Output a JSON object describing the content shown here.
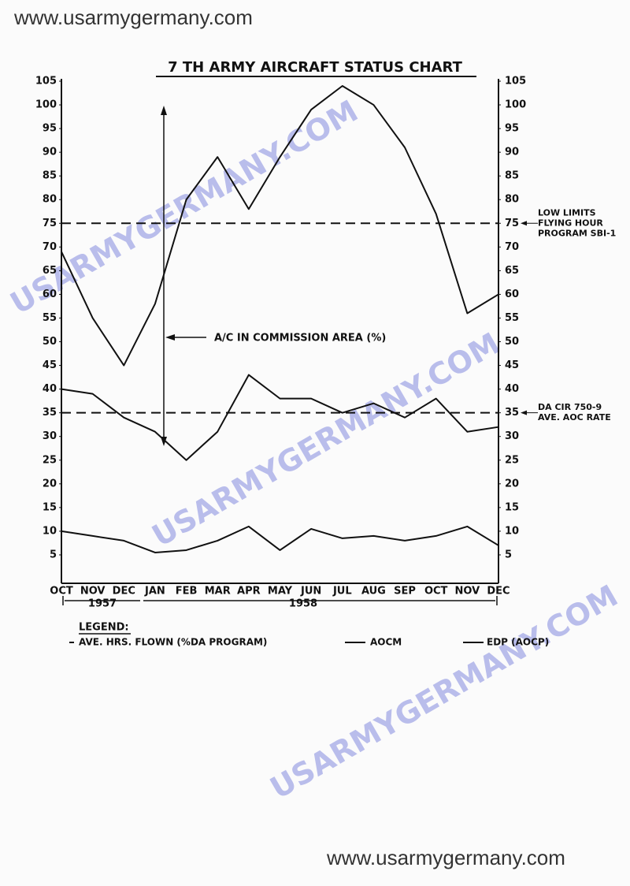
{
  "header_url": "www.usarmygermany.com",
  "footer_url": "www.usarmygermany.com",
  "watermark": "USARMYGERMANY.COM",
  "chart_data": {
    "type": "line",
    "title": "7 TH ARMY AIRCRAFT STATUS CHART",
    "categories": [
      "OCT",
      "NOV",
      "DEC",
      "JAN",
      "FEB",
      "MAR",
      "APR",
      "MAY",
      "JUN",
      "JUL",
      "AUG",
      "SEP",
      "OCT",
      "NOV",
      "DEC"
    ],
    "years": [
      "1957",
      "1958"
    ],
    "series": [
      {
        "name": "AVE. HRS. FLOWN (%DA PROGRAM)",
        "color": "#111111",
        "values": [
          69,
          55,
          45,
          58,
          80,
          89,
          78,
          89,
          99,
          104,
          100,
          91,
          77,
          56,
          60
        ]
      },
      {
        "name": "AOCM",
        "color": "#111111",
        "values": [
          40,
          39,
          34,
          31,
          25,
          31,
          43,
          38,
          38,
          35,
          37,
          34,
          38,
          31,
          32
        ]
      },
      {
        "name": "EDP (AOCP)",
        "color": "#111111",
        "values": [
          10,
          9,
          8,
          5.5,
          6,
          8,
          11,
          6,
          10.5,
          8.5,
          9,
          8,
          9,
          11,
          7
        ]
      }
    ],
    "ylim": [
      0,
      105
    ],
    "yticks": [
      5,
      10,
      15,
      20,
      25,
      30,
      35,
      40,
      45,
      50,
      55,
      60,
      65,
      70,
      75,
      80,
      85,
      90,
      95,
      100,
      105
    ],
    "y2lim": [
      0,
      105
    ],
    "y2ticks": [
      5,
      10,
      15,
      20,
      25,
      30,
      35,
      40,
      45,
      50,
      55,
      60,
      65,
      70,
      75,
      80,
      85,
      90,
      95,
      100,
      105
    ],
    "reference_lines": [
      {
        "value": 75,
        "label": [
          "LOW LIMITS",
          "FLYING HOUR",
          "PROGRAM SBI-1"
        ]
      },
      {
        "value": 35,
        "label": [
          "DA CIR 750-9",
          "AVE. AOC RATE"
        ]
      }
    ],
    "annotation": "A/C IN COMMISSION AREA (%)",
    "legend_title": "LEGEND:",
    "grid": false
  }
}
